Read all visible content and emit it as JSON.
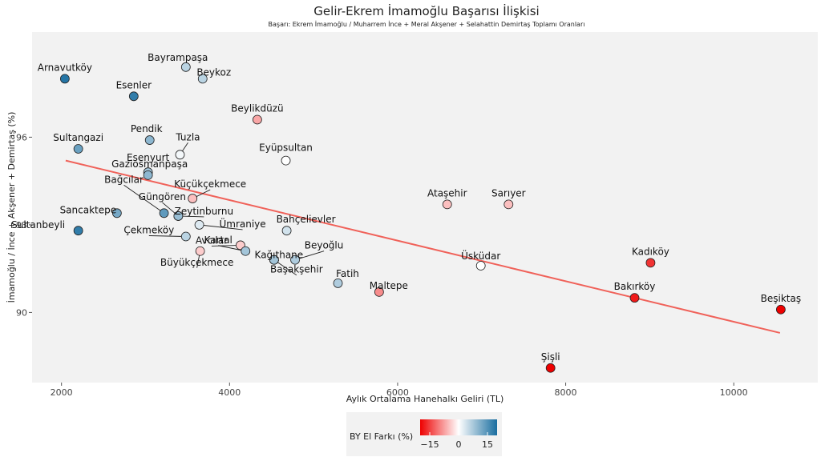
{
  "chart_data": {
    "type": "scatter",
    "title": "Gelir-Ekrem İmamoğlu Başarısı İlişkisi",
    "subtitle": "Başarı: Ekrem İmamoğlu / Muharrem İnce + Meral Akşener + Selahattin Demirtaş Toplamı Oranları",
    "xlabel": "Aylık Ortalama Hanehalkı Geliri (TL)",
    "ylabel": "İmamoğlu / İnce + Akşener + Demirtaş (%)",
    "xlim": [
      1650,
      11000
    ],
    "ylim": [
      87.6,
      99.6
    ],
    "x_ticks": [
      2000,
      4000,
      6000,
      8000,
      10000
    ],
    "y_ticks": [
      90,
      93,
      96
    ],
    "grid": false,
    "trendline": {
      "x": [
        2050,
        10550
      ],
      "y": [
        95.2,
        89.3
      ],
      "color": "#f0625a"
    },
    "color_scale": {
      "low": "#ee0000",
      "mid": "#ffffff",
      "high": "#1a6ea0",
      "domain": [
        -20,
        20
      ]
    },
    "points": [
      {
        "name": "Arnavutköy",
        "x": 2040,
        "y": 98.0,
        "c": 19
      },
      {
        "name": "Bayrampaşa",
        "x": 3480,
        "y": 98.4,
        "c": 6
      },
      {
        "name": "Beykoz",
        "x": 3680,
        "y": 98.0,
        "c": 6
      },
      {
        "name": "Esenler",
        "x": 2860,
        "y": 97.4,
        "c": 18
      },
      {
        "name": "Beylikdüzü",
        "x": 4330,
        "y": 96.6,
        "c": -7
      },
      {
        "name": "Pendik",
        "x": 3050,
        "y": 95.9,
        "c": 10
      },
      {
        "name": "Sultangazi",
        "x": 2200,
        "y": 95.6,
        "c": 13
      },
      {
        "name": "Tuzla",
        "x": 3410,
        "y": 95.4,
        "c": 1
      },
      {
        "name": "Eyüpsultan",
        "x": 4670,
        "y": 95.2,
        "c": 0
      },
      {
        "name": "Esenyurt",
        "x": 3030,
        "y": 94.8,
        "c": 8
      },
      {
        "name": "Gaziosmanpaşa",
        "x": 3030,
        "y": 94.7,
        "c": 10
      },
      {
        "name": "Küçükçekmece",
        "x": 3560,
        "y": 93.9,
        "c": -5
      },
      {
        "name": "Bağcılar",
        "x": 3220,
        "y": 93.4,
        "c": 14
      },
      {
        "name": "Güngören",
        "x": 3390,
        "y": 93.3,
        "c": 9
      },
      {
        "name": "Zeytinburnu",
        "x": 3390,
        "y": 93.3,
        "c": 9
      },
      {
        "name": "Ataşehir",
        "x": 6590,
        "y": 93.7,
        "c": -5
      },
      {
        "name": "Sarıyer",
        "x": 7320,
        "y": 93.7,
        "c": -5
      },
      {
        "name": "Sancaktepe",
        "x": 2660,
        "y": 93.4,
        "c": 12
      },
      {
        "name": "Sultanbeyli",
        "x": 2200,
        "y": 92.8,
        "c": 18
      },
      {
        "name": "Ümraniye",
        "x": 3640,
        "y": 93.0,
        "c": 3
      },
      {
        "name": "Bahçelievler",
        "x": 4680,
        "y": 92.8,
        "c": 4
      },
      {
        "name": "Çekmeköy",
        "x": 3480,
        "y": 92.6,
        "c": 6
      },
      {
        "name": "Avcılar",
        "x": 4130,
        "y": 92.3,
        "c": -4
      },
      {
        "name": "Kartal",
        "x": 4190,
        "y": 92.1,
        "c": 8
      },
      {
        "name": "Büyükçekmece",
        "x": 3650,
        "y": 92.1,
        "c": -4
      },
      {
        "name": "Kağıthane",
        "x": 4530,
        "y": 91.8,
        "c": 8
      },
      {
        "name": "Beyoğlu",
        "x": 4780,
        "y": 91.8,
        "c": 7
      },
      {
        "name": "Başakşehir",
        "x": 4530,
        "y": 91.8,
        "c": 8
      },
      {
        "name": "Üsküdar",
        "x": 6990,
        "y": 91.6,
        "c": 0
      },
      {
        "name": "Kadıköy",
        "x": 9010,
        "y": 91.7,
        "c": -16
      },
      {
        "name": "Fatih",
        "x": 5290,
        "y": 91.0,
        "c": 7
      },
      {
        "name": "Maltepe",
        "x": 5780,
        "y": 90.7,
        "c": -9
      },
      {
        "name": "Bakırköy",
        "x": 8820,
        "y": 90.5,
        "c": -18
      },
      {
        "name": "Beşiktaş",
        "x": 10560,
        "y": 90.1,
        "c": -20
      },
      {
        "name": "Şişli",
        "x": 7820,
        "y": 88.1,
        "c": -20
      }
    ],
    "legend": {
      "title": "BY El Farkı (%)",
      "ticks": [
        "−15",
        "0",
        "15"
      ],
      "tick_values": [
        -15,
        0,
        15
      ],
      "placement": "bottom"
    }
  }
}
